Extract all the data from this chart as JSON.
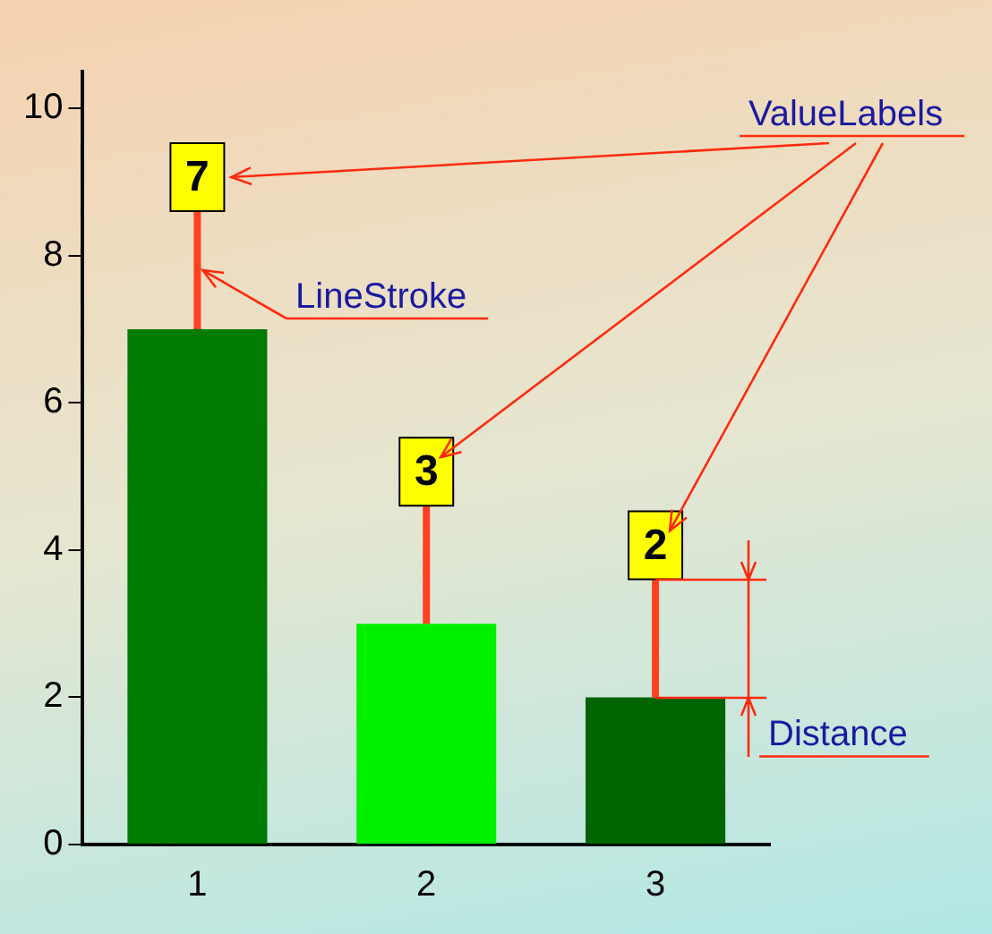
{
  "chart_data": {
    "type": "bar",
    "categories": [
      "1",
      "2",
      "3"
    ],
    "series": [
      {
        "colors": [
          "#007a00",
          "#00f000",
          "#006400"
        ],
        "values": [
          7,
          3,
          2
        ]
      }
    ],
    "ylim": [
      0,
      10.5
    ],
    "yticks": [
      0,
      2,
      4,
      6,
      8,
      10
    ],
    "grid": false,
    "legend": false,
    "data_labels": true,
    "annotations": [
      "ValueLabels",
      "LineStroke",
      {
        "text": "Distance",
        "x": "3",
        "y": 2
      }
    ]
  }
}
